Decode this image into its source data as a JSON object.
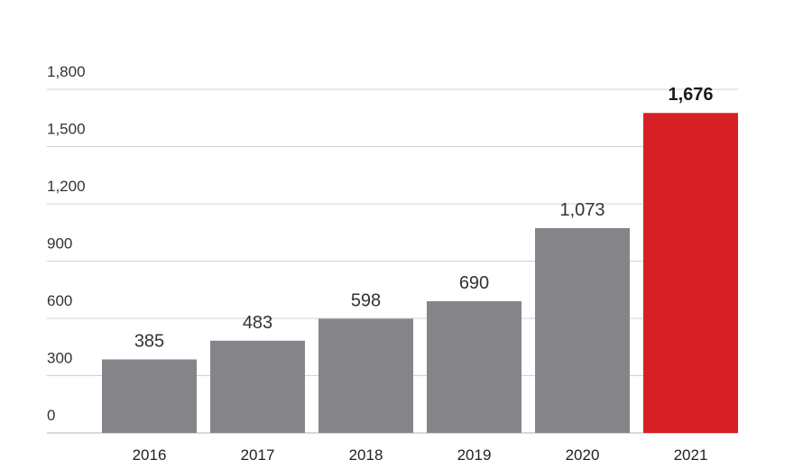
{
  "chart_data": {
    "type": "bar",
    "title": "",
    "xlabel": "",
    "ylabel": "",
    "categories": [
      "2016",
      "2017",
      "2018",
      "2019",
      "2020",
      "2021"
    ],
    "values": [
      385,
      483,
      598,
      690,
      1073,
      1676
    ],
    "value_labels": [
      "385",
      "483",
      "598",
      "690",
      "1,073",
      "1,676"
    ],
    "highlight_index": 5,
    "ylim": [
      0,
      1800
    ],
    "yticks": [
      0,
      300,
      600,
      900,
      1200,
      1500,
      1800
    ],
    "ytick_labels": [
      "0",
      "300",
      "600",
      "900",
      "1,200",
      "1,500",
      "1,800"
    ],
    "grid": true,
    "legend": "none",
    "colors": {
      "bar": "#858589",
      "highlight": "#d71f26",
      "grid": "#d0d0d0",
      "axis": "#b0b0b0"
    }
  }
}
